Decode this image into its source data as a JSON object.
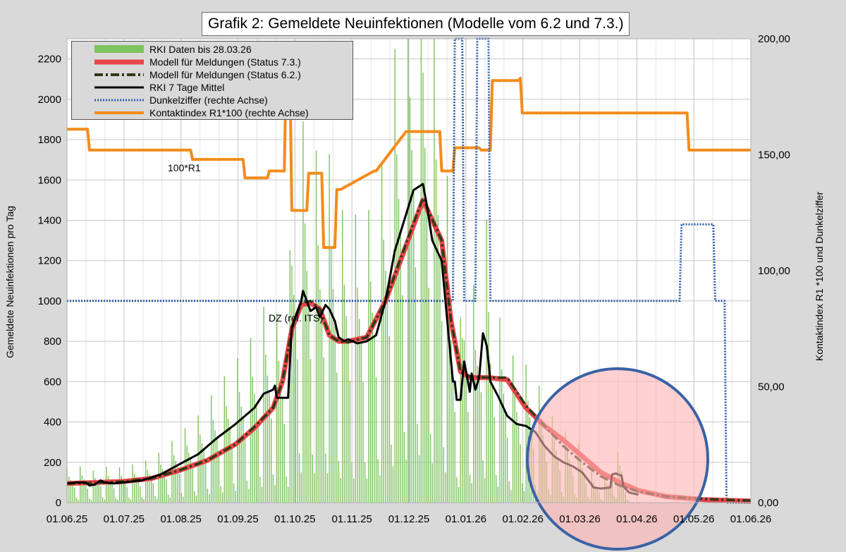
{
  "title": "Grafik 2: Gemeldete Neuinfektionen (Modelle vom 6.2 und 7.3.)",
  "legend": [
    {
      "label": "RKI Daten bis 28.03.26",
      "color": "#7dc35e",
      "style": "bar"
    },
    {
      "label": "Modell für Meldungen (Status 7.3.)",
      "color": "#e8464a",
      "style": "thick"
    },
    {
      "label": "Modell für Meldungen (Status 6.2.)",
      "color": "#2d3a16",
      "style": "dashdot"
    },
    {
      "label": "RKI 7 Tage Mittel",
      "color": "#000000",
      "style": "solid"
    },
    {
      "label": "Dunkelziffer (rechte Achse)",
      "color": "#2f5fa8",
      "style": "dotted"
    },
    {
      "label": "Kontaktindex R1*100 (rechte Achse)",
      "color": "#f28c1c",
      "style": "solid"
    }
  ],
  "annotations": {
    "r1_label": "100*R1",
    "dz_label": "DZ (rel. ITS)"
  },
  "colors": {
    "orange": "#f28c1c",
    "dotted": "#2f5fa8",
    "bars": "#7dc35e",
    "model73": "#e8464a",
    "model62": "#2d3a16",
    "mean": "#000000",
    "circle_fill": "#ffb3b3",
    "circle_stroke": "#3a62a6"
  },
  "chart_data": {
    "type": "line",
    "xlabel": "",
    "ylabel": "Gemeldete Neuinfektionen pro Tag",
    "y2label": "Kontaktindex R1 *100 und Dunkelziffer",
    "x_ticks": [
      "01.06.25",
      "01.07.25",
      "01.08.25",
      "01.09.25",
      "01.10.25",
      "01.11.25",
      "01.12.25",
      "01.01.26",
      "01.02.26",
      "01.03.26",
      "01.04.26",
      "01.05.26",
      "01.06.26"
    ],
    "y_ticks": [
      "0",
      "200",
      "400",
      "600",
      "800",
      "1000",
      "1200",
      "1400",
      "1600",
      "1800",
      "2000",
      "2200"
    ],
    "y2_ticks": [
      "0,00",
      "50,00",
      "100,00",
      "150,00",
      "200,00"
    ],
    "ylim": [
      0,
      2300
    ],
    "y2lim": [
      0,
      200
    ],
    "grid": true,
    "legend_position": "top-left",
    "series": [
      {
        "name": "Kontaktindex R1*100 (rechte Achse)",
        "axis": "right",
        "kind": "step",
        "x": [
          0,
          11,
          12,
          66,
          67,
          94,
          95,
          107,
          108,
          116,
          117,
          119,
          120,
          128,
          129,
          135,
          136,
          137,
          138,
          143,
          144,
          145,
          146,
          164,
          165,
          181,
          182,
          199,
          200,
          206,
          207,
          220,
          221,
          226,
          227,
          240,
          241,
          242,
          243,
          265,
          266,
          331,
          332,
          365
        ],
        "y": [
          161,
          161,
          152,
          152,
          148,
          148,
          140,
          140,
          143,
          143,
          188,
          188,
          126,
          126,
          142,
          142,
          142,
          110,
          110,
          110,
          135,
          135,
          135,
          143,
          143,
          160,
          160,
          160,
          143,
          143,
          153,
          153,
          152,
          152,
          182,
          182,
          182,
          183,
          168,
          168,
          168,
          168,
          152,
          152
        ]
      },
      {
        "name": "Dunkelziffer (rechte Achse)",
        "axis": "right",
        "kind": "step",
        "x": [
          0,
          206,
          207,
          211,
          212,
          218,
          219,
          225,
          226,
          327,
          328,
          345,
          346,
          350,
          351,
          352,
          353,
          365
        ],
        "y": [
          87,
          87,
          200,
          200,
          87,
          87,
          200,
          200,
          87,
          87,
          120,
          120,
          87,
          87,
          87,
          0,
          0,
          0
        ]
      },
      {
        "name": "Modell für Meldungen (Status 7.3.)",
        "axis": "left",
        "x": [
          0,
          15,
          30,
          45,
          60,
          75,
          90,
          100,
          110,
          115,
          120,
          125,
          130,
          135,
          140,
          145,
          150,
          160,
          170,
          180,
          190,
          200,
          205,
          210,
          215,
          225,
          235,
          245,
          255,
          265,
          275,
          285,
          295,
          305,
          320,
          340,
          365
        ],
        "y": [
          95,
          100,
          105,
          120,
          160,
          210,
          290,
          370,
          470,
          600,
          860,
          980,
          990,
          960,
          830,
          800,
          800,
          820,
          1000,
          1250,
          1500,
          1300,
          900,
          650,
          620,
          620,
          610,
          470,
          380,
          310,
          230,
          150,
          100,
          60,
          30,
          15,
          8
        ]
      },
      {
        "name": "Modell für Meldungen (Status 6.2.)",
        "axis": "left",
        "x": [
          0,
          15,
          30,
          45,
          60,
          75,
          90,
          100,
          110,
          115,
          120,
          125,
          130,
          135,
          140,
          145,
          150,
          160,
          170,
          180,
          190,
          200,
          205,
          210,
          215,
          225,
          235,
          245,
          255,
          265,
          275,
          285,
          295,
          305,
          320,
          340,
          365
        ],
        "y": [
          95,
          98,
          105,
          120,
          160,
          210,
          290,
          375,
          470,
          600,
          860,
          990,
          1000,
          960,
          830,
          800,
          795,
          820,
          1000,
          1260,
          1510,
          1300,
          900,
          650,
          625,
          620,
          620,
          480,
          380,
          280,
          200,
          130,
          85,
          55,
          30,
          18,
          10
        ]
      },
      {
        "name": "RKI 7 Tage Mittel",
        "axis": "left",
        "x": [
          0,
          5,
          10,
          12,
          15,
          18,
          20,
          25,
          30,
          40,
          50,
          60,
          70,
          80,
          90,
          100,
          105,
          110,
          111,
          112,
          118,
          120,
          125,
          126,
          130,
          133,
          135,
          138,
          140,
          143,
          145,
          148,
          150,
          155,
          160,
          165,
          170,
          175,
          180,
          185,
          190,
          192,
          195,
          200,
          205,
          206,
          207,
          208,
          210,
          212,
          215,
          216,
          218,
          220,
          222,
          224,
          225,
          226,
          230,
          235,
          240,
          245,
          250,
          255,
          260,
          265,
          270,
          275,
          280,
          281,
          285,
          290,
          291,
          293,
          294,
          296,
          297,
          300,
          305
        ],
        "y": [
          95,
          100,
          100,
          85,
          90,
          110,
          100,
          95,
          100,
          110,
          140,
          190,
          240,
          320,
          390,
          470,
          540,
          560,
          580,
          520,
          520,
          870,
          1000,
          1050,
          950,
          970,
          920,
          980,
          960,
          900,
          820,
          800,
          810,
          790,
          800,
          830,
          1000,
          1250,
          1400,
          1550,
          1580,
          1480,
          1300,
          1200,
          700,
          600,
          600,
          510,
          510,
          700,
          550,
          640,
          560,
          620,
          840,
          780,
          700,
          600,
          530,
          430,
          390,
          380,
          350,
          280,
          230,
          200,
          180,
          150,
          90,
          75,
          70,
          75,
          140,
          145,
          140,
          135,
          80,
          50,
          40
        ]
      }
    ]
  }
}
